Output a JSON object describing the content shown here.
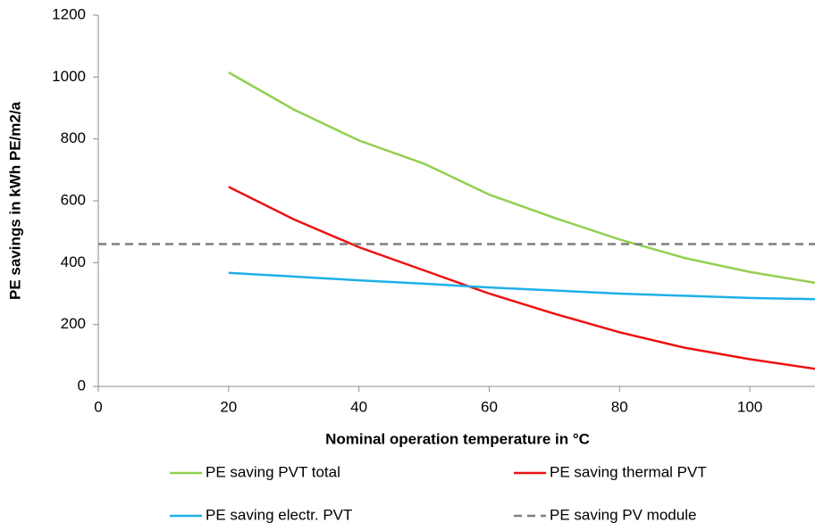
{
  "chart_data": {
    "type": "line",
    "xlabel": "Nominal operation temperature in °C",
    "ylabel": "PE savings in kWh PE/m2/a",
    "xlim": [
      0,
      110
    ],
    "xticks": [
      0,
      20,
      40,
      60,
      80,
      100
    ],
    "ylim": [
      0,
      1200
    ],
    "yticks": [
      0,
      200,
      400,
      600,
      800,
      1000,
      1200
    ],
    "grid": false,
    "legend": "bottom",
    "series": [
      {
        "name": "PE saving PVT total",
        "color": "#92d050",
        "x": [
          20,
          30,
          40,
          50,
          60,
          70,
          80,
          90,
          100,
          110
        ],
        "values": [
          1015,
          895,
          795,
          720,
          620,
          545,
          475,
          415,
          370,
          335
        ]
      },
      {
        "name": "PE saving thermal PVT",
        "color": "#ee1111",
        "x": [
          20,
          30,
          40,
          50,
          60,
          70,
          80,
          90,
          100,
          110
        ],
        "values": [
          645,
          540,
          450,
          375,
          300,
          235,
          175,
          125,
          88,
          57
        ]
      },
      {
        "name": "PE saving electr. PVT",
        "color": "#1eb0e8",
        "x": [
          20,
          30,
          40,
          50,
          60,
          70,
          80,
          90,
          100,
          110
        ],
        "values": [
          367,
          355,
          343,
          332,
          320,
          310,
          300,
          293,
          286,
          282
        ]
      },
      {
        "name": "PE saving PV module",
        "color": "#7f7f7f",
        "dashed": true,
        "x": [
          0,
          110
        ],
        "values": [
          460,
          460
        ]
      }
    ]
  }
}
